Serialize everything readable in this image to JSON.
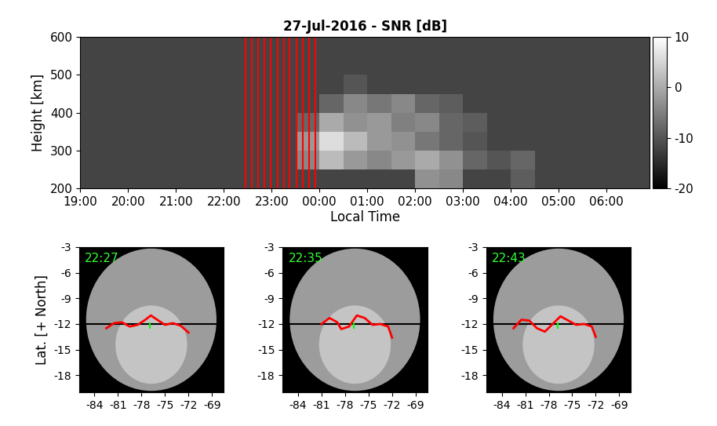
{
  "chart_data": [
    {
      "type": "heatmap",
      "title": "27-Jul-2016 - SNR [dB]",
      "x_label": "Local Time",
      "y_label": "Height [km]",
      "xlim": [
        19,
        30.9
      ],
      "ylim": [
        200,
        600
      ],
      "xticks": [
        {
          "value": 19,
          "label": "19:00"
        },
        {
          "value": 20,
          "label": "20:00"
        },
        {
          "value": 21,
          "label": "21:00"
        },
        {
          "value": 22,
          "label": "22:00"
        },
        {
          "value": 23,
          "label": "23:00"
        },
        {
          "value": 24,
          "label": "00:00"
        },
        {
          "value": 25,
          "label": "01:00"
        },
        {
          "value": 26,
          "label": "02:00"
        },
        {
          "value": 27,
          "label": "03:00"
        },
        {
          "value": 28,
          "label": "04:00"
        },
        {
          "value": 29,
          "label": "05:00"
        },
        {
          "value": 30,
          "label": "06:00"
        }
      ],
      "yticks": [
        200,
        300,
        400,
        500,
        600
      ],
      "x_edges": [
        19,
        19.5,
        20,
        20.5,
        21,
        21.5,
        22,
        22.5,
        23,
        23.5,
        24,
        24.5,
        25,
        25.5,
        26,
        26.5,
        27,
        27.5,
        28,
        28.5,
        29,
        29.5,
        30,
        30.5,
        31
      ],
      "y_edges": [
        200,
        250,
        300,
        350,
        400,
        450,
        500,
        550,
        600
      ],
      "cells": [
        [
          -12,
          -12,
          -12,
          -12,
          -12,
          -12,
          -12,
          -12,
          -12,
          -12,
          -12,
          -12,
          -12,
          -12,
          -3,
          -4,
          -12,
          -12,
          -9,
          -12,
          -12,
          -12,
          -12,
          -12
        ],
        [
          -12,
          -12,
          -12,
          -12,
          -12,
          -12,
          -12,
          -12,
          -12,
          -4,
          2,
          -2,
          -4,
          -2,
          0,
          -3,
          -8,
          -10,
          -8,
          -12,
          -12,
          -12,
          -12,
          -12
        ],
        [
          -12,
          -12,
          -12,
          -12,
          -12,
          -12,
          -12,
          -12,
          -12,
          -2,
          6,
          2,
          -2,
          -3,
          -6,
          -8,
          -10,
          -12,
          -12,
          -12,
          -12,
          -12,
          -12,
          -12
        ],
        [
          -12,
          -12,
          -12,
          -12,
          -12,
          -12,
          -12,
          -12,
          -12,
          -8,
          0,
          -3,
          -2,
          -5,
          -4,
          -8,
          -9,
          -12,
          -12,
          -12,
          -12,
          -12,
          -12,
          -12
        ],
        [
          -12,
          -12,
          -12,
          -12,
          -12,
          -12,
          -12,
          -12,
          -12,
          -12,
          -8,
          -4,
          -6,
          -4,
          -8,
          -9,
          -12,
          -12,
          -12,
          -12,
          -12,
          -12,
          -12,
          -12
        ],
        [
          -12,
          -12,
          -12,
          -12,
          -12,
          -12,
          -12,
          -12,
          -12,
          -12,
          -12,
          -10,
          -12,
          -12,
          -12,
          -12,
          -12,
          -12,
          -12,
          -12,
          -12,
          -12,
          -12,
          -12
        ],
        [
          -12,
          -12,
          -12,
          -12,
          -12,
          -12,
          -12,
          -12,
          -12,
          -12,
          -12,
          -12,
          -12,
          -12,
          -12,
          -12,
          -12,
          -12,
          -12,
          -12,
          -12,
          -12,
          -12,
          -12
        ],
        [
          -12,
          -12,
          -12,
          -12,
          -12,
          -12,
          -12,
          -12,
          -12,
          -12,
          -12,
          -12,
          -12,
          -12,
          -12,
          -12,
          -12,
          -12,
          -12,
          -12,
          -12,
          -12,
          -12,
          -12
        ]
      ],
      "colorbar": {
        "range": [
          -20,
          10
        ],
        "ticks": [
          -20,
          -10,
          0,
          10
        ]
      },
      "vlines": {
        "x": [
          22.45,
          22.58,
          22.72,
          22.85,
          22.98,
          23.12,
          23.25,
          23.38,
          23.52,
          23.65,
          23.78,
          23.92
        ],
        "color": "red"
      }
    },
    {
      "type": "line",
      "annotation": "22:27",
      "y_label": "Lat. [+ North]",
      "xlim": [
        -86,
        -67.5
      ],
      "ylim": [
        -20,
        -3
      ],
      "xticks": [
        -84,
        -81,
        -78,
        -75,
        -72,
        -69
      ],
      "yticks": [
        -18,
        -15,
        -12,
        -9,
        -6,
        -3
      ],
      "reference_line": {
        "value": -12,
        "color": "black"
      },
      "series": [
        {
          "type": "line",
          "color": "red",
          "x": [
            -82.5,
            -81.5,
            -80.5,
            -79.5,
            -78.5,
            -77.5,
            -76.8,
            -76,
            -75,
            -74,
            -73,
            -72
          ],
          "values": [
            -12.5,
            -11.9,
            -11.8,
            -12.3,
            -12.1,
            -11.5,
            -11.0,
            -11.5,
            -12.1,
            -11.9,
            -12.2,
            -13.0
          ]
        },
        {
          "type": "scatter",
          "color": "#00ff00",
          "marker": "|",
          "x": [
            -76.9
          ],
          "values": [
            -12.2
          ]
        }
      ]
    },
    {
      "type": "line",
      "annotation": "22:35",
      "xlim": [
        -86,
        -67.5
      ],
      "ylim": [
        -20,
        -3
      ],
      "xticks": [
        -84,
        -81,
        -78,
        -75,
        -72,
        -69
      ],
      "yticks": [
        -18,
        -15,
        -12,
        -9,
        -6,
        -3
      ],
      "reference_line": {
        "value": -12,
        "color": "black"
      },
      "series": [
        {
          "type": "line",
          "color": "red",
          "x": [
            -81,
            -80,
            -79,
            -78.5,
            -77.5,
            -76.5,
            -75.5,
            -74.5,
            -73.5,
            -72.5,
            -72
          ],
          "values": [
            -12.0,
            -11.3,
            -11.8,
            -12.6,
            -12.3,
            -11.0,
            -11.3,
            -12.1,
            -12.0,
            -12.3,
            -13.6
          ]
        },
        {
          "type": "scatter",
          "color": "#00ff00",
          "marker": "|",
          "x": [
            -76.9
          ],
          "values": [
            -12.2
          ]
        }
      ]
    },
    {
      "type": "line",
      "annotation": "22:43",
      "xlim": [
        -86,
        -67.5
      ],
      "ylim": [
        -20,
        -3
      ],
      "xticks": [
        -84,
        -81,
        -78,
        -75,
        -72,
        -69
      ],
      "yticks": [
        -18,
        -15,
        -12,
        -9,
        -6,
        -3
      ],
      "reference_line": {
        "value": -12,
        "color": "black"
      },
      "series": [
        {
          "type": "line",
          "color": "red",
          "x": [
            -82.5,
            -81.5,
            -80.5,
            -79.5,
            -78.5,
            -77.5,
            -76.5,
            -75.5,
            -74.5,
            -73.5,
            -72.5,
            -72
          ],
          "values": [
            -12.5,
            -11.5,
            -11.6,
            -12.5,
            -12.9,
            -12.0,
            -11.1,
            -11.6,
            -12.1,
            -12.0,
            -12.3,
            -13.5
          ]
        },
        {
          "type": "scatter",
          "color": "#00ff00",
          "marker": "|",
          "x": [
            -76.9
          ],
          "values": [
            -12.2
          ]
        }
      ]
    }
  ]
}
